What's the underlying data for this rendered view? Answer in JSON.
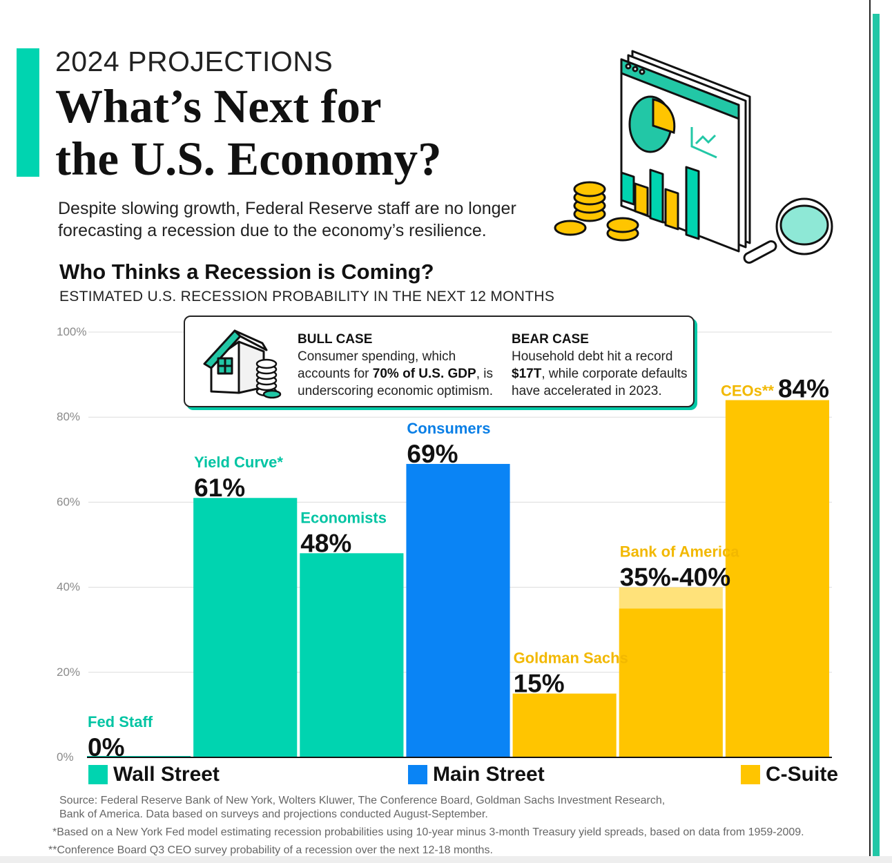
{
  "header": {
    "kicker": "2024 PROJECTIONS",
    "title_line1": "What’s Next for",
    "title_line2": "the U.S. Economy?",
    "subtitle": "Despite slowing growth, Federal Reserve staff are no longer forecasting a recession due to the economy’s resilience."
  },
  "section": {
    "title": "Who Thinks a Recession is Coming?",
    "subtitle": "ESTIMATED U.S. RECESSION PROBABILITY IN THE NEXT 12 MONTHS"
  },
  "callout": {
    "bull_title": "BULL CASE",
    "bull_pre": "Consumer spending, which accounts for",
    "bull_bold": "70% of U.S. GDP",
    "bull_post": ", is underscoring economic optimism.",
    "bear_title": "BEAR CASE",
    "bear_pre": "Household debt hit a record",
    "bear_bold": "$17T",
    "bear_post": ", while corporate defaults have accelerated in 2023."
  },
  "colors": {
    "wall_street": "#00d4b0",
    "main_street": "#0a84f5",
    "c_suite": "#ffc500",
    "c_suite_range": "#ffe27a",
    "accent": "#00d4b0"
  },
  "chart_data": {
    "type": "bar",
    "categories": [
      "Fed Staff",
      "Yield Curve*",
      "Economists",
      "Consumers",
      "Goldman Sachs",
      "Bank of America",
      "CEOs**"
    ],
    "values": [
      0,
      61,
      48,
      69,
      15,
      40,
      84
    ],
    "range_low": [
      null,
      null,
      null,
      null,
      null,
      35,
      null
    ],
    "value_labels": [
      "0%",
      "61%",
      "48%",
      "69%",
      "15%",
      "35%-40%",
      "84%"
    ],
    "groups": [
      "Wall Street",
      "Wall Street",
      "Wall Street",
      "Main Street",
      "C-Suite",
      "C-Suite",
      "C-Suite"
    ],
    "yticks": [
      "0%",
      "20%",
      "40%",
      "60%",
      "80%",
      "100%"
    ],
    "ylim": [
      0,
      100
    ],
    "grid": true,
    "legend": [
      {
        "name": "Wall Street",
        "color": "#00d4b0"
      },
      {
        "name": "Main Street",
        "color": "#0a84f5"
      },
      {
        "name": "C-Suite",
        "color": "#ffc500"
      }
    ]
  },
  "footer": {
    "source": "Source: Federal Reserve Bank of New York, Wolters Kluwer, The Conference Board, Goldman Sachs Investment Research, Bank of America. Data based on surveys and projections conducted August-September.",
    "note1": "*Based on a New York Fed model estimating recession probabilities using 10-year minus 3-month Treasury yield spreads, based on data from 1959-2009.",
    "note2": "**Conference Board Q3 CEO survey probability of a recession over the next 12-18 months."
  }
}
